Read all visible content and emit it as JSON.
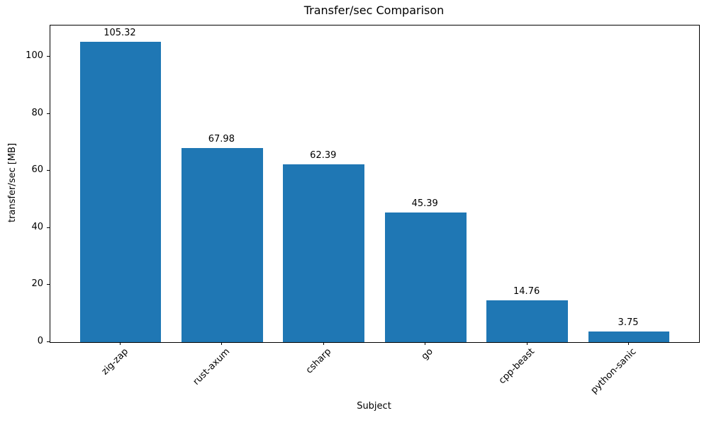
{
  "chart_data": {
    "type": "bar",
    "title": "Transfer/sec Comparison",
    "xlabel": "Subject",
    "ylabel": "transfer/sec [MB]",
    "categories": [
      "zig-zap",
      "rust-axum",
      "csharp",
      "go",
      "cpp-beast",
      "python-sanic"
    ],
    "values": [
      105.32,
      67.98,
      62.39,
      45.39,
      14.76,
      3.75
    ],
    "bar_value_labels": [
      "105.32",
      "67.98",
      "62.39",
      "45.39",
      "14.76",
      "3.75"
    ],
    "yticks": [
      "0",
      "20",
      "40",
      "60",
      "80",
      "100"
    ],
    "ytick_values": [
      0,
      20,
      40,
      60,
      80,
      100
    ],
    "ylim": [
      0,
      111
    ],
    "xlim": [
      -0.69,
      5.69
    ],
    "bar_width_units": 0.8,
    "x_tick_rotation_deg": 45,
    "grid": false,
    "legend": null,
    "colors": {
      "bar": "#1f77b4",
      "axis": "#000000",
      "text": "#000000",
      "background": "#ffffff"
    }
  }
}
